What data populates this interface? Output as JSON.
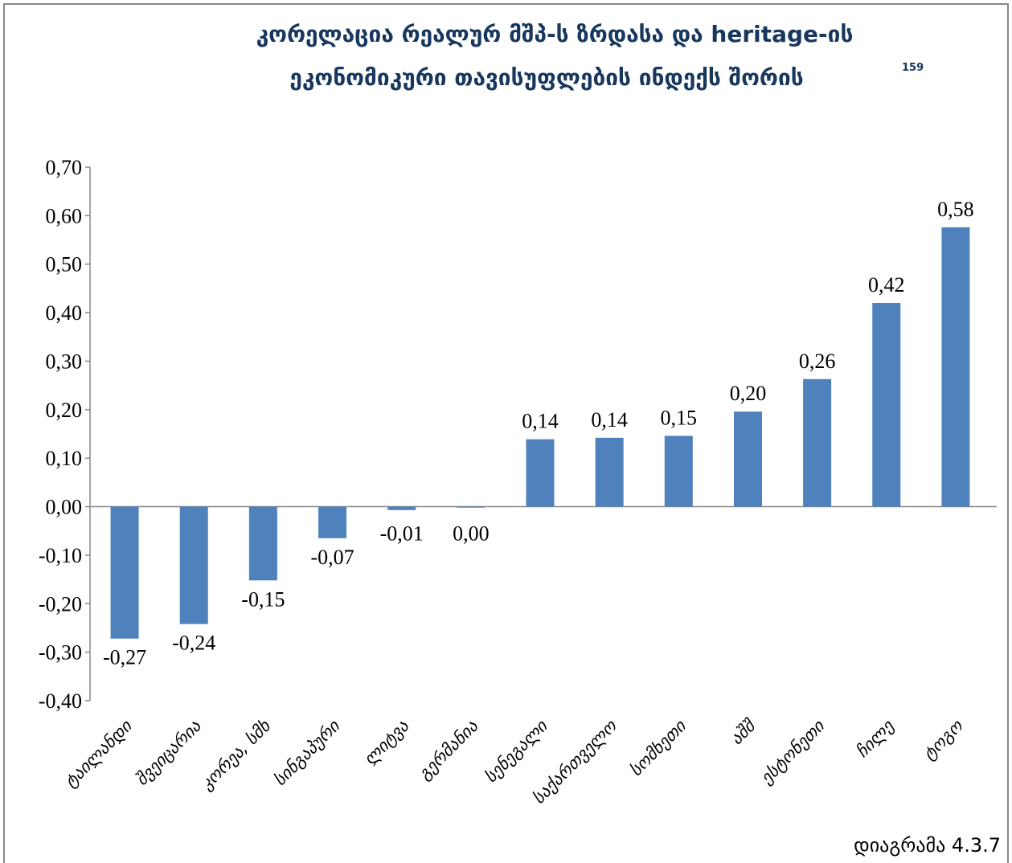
{
  "chart_data": {
    "type": "bar",
    "title": [
      "კორელაცია რეალურ მშპ-ს ზრდასა და  heritage-ის",
      "ეკონომიკური თავისუფლების ინდექს შორის"
    ],
    "title_note": "159",
    "caption": "დიაგრამა 4.3.7",
    "categories": [
      "ტაილანდი",
      "შვეიცარია",
      "კორეა, სმხ",
      "სინგაპური",
      "ლიტვა",
      "გერმანია",
      "სენეგალი",
      "საქართველო",
      "სომხეთი",
      "აშშ",
      "ესტონეთი",
      "ჩილე",
      "ტოგო"
    ],
    "values": [
      -0.272,
      -0.242,
      -0.152,
      -0.065,
      -0.007,
      -0.002,
      0.139,
      0.142,
      0.146,
      0.196,
      0.263,
      0.42,
      0.576
    ],
    "value_labels": [
      "-0,27",
      "-0,24",
      "-0,15",
      "-0,07",
      "-0,01",
      "0,00",
      "0,14",
      "0,14",
      "0,15",
      "0,20",
      "0,26",
      "0,42",
      "0,58"
    ],
    "color": "#4f81bd",
    "ylim": [
      -0.4,
      0.7
    ],
    "yticks": [
      {
        "value": -0.4,
        "label": "-0,40"
      },
      {
        "value": -0.3,
        "label": "-0,30"
      },
      {
        "value": -0.2,
        "label": "-0,20"
      },
      {
        "value": -0.1,
        "label": "-0,10"
      },
      {
        "value": 0,
        "label": "0,00"
      },
      {
        "value": 0.1,
        "label": "0,10"
      },
      {
        "value": 0.2,
        "label": "0,20"
      },
      {
        "value": 0.3,
        "label": "0,30"
      },
      {
        "value": 0.4,
        "label": "0,40"
      },
      {
        "value": 0.5,
        "label": "0,50"
      },
      {
        "value": 0.6,
        "label": "0,60"
      },
      {
        "value": 0.7,
        "label": "0,70"
      }
    ],
    "grid": false
  }
}
